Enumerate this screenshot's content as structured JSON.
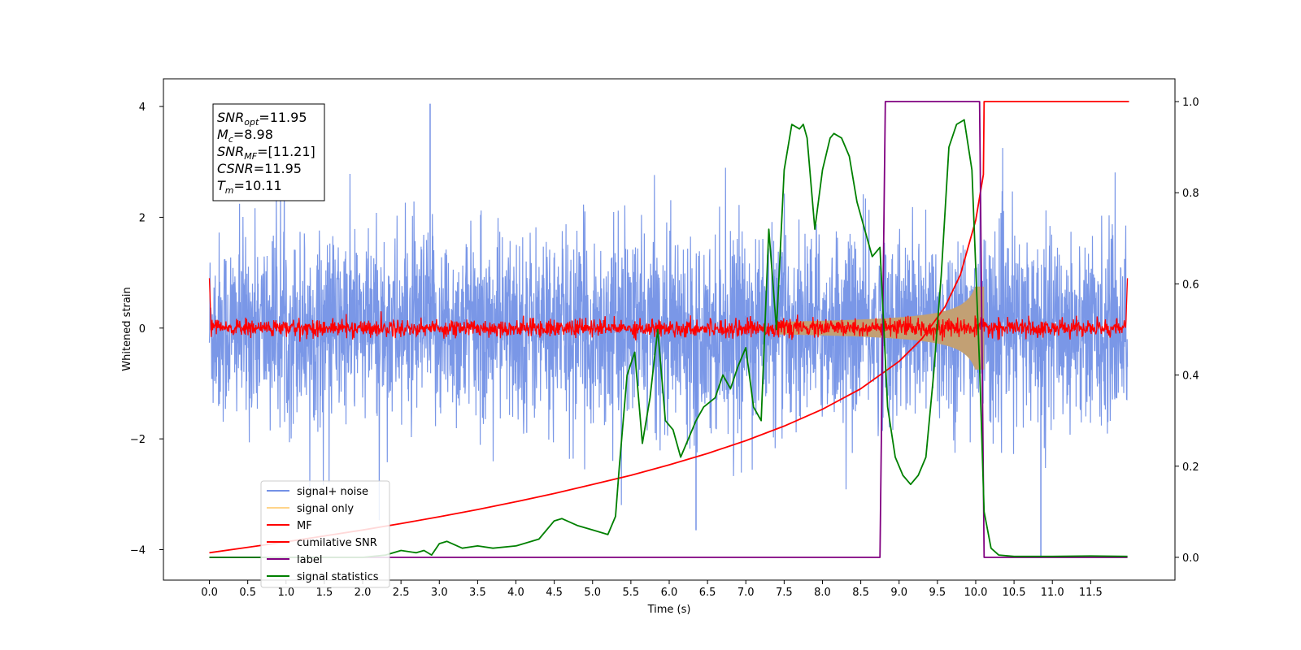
{
  "chart_data": {
    "type": "line",
    "xlabel": "Time (s)",
    "ylabel": "Whitened strain",
    "xlim": [
      -0.6,
      12.6
    ],
    "ylim": [
      -4.55,
      4.5
    ],
    "y2lim": [
      -0.05,
      1.05
    ],
    "x_ticks": [
      "0.0",
      "0.5",
      "1.0",
      "1.5",
      "2.0",
      "2.5",
      "3.0",
      "3.5",
      "4.0",
      "4.5",
      "5.0",
      "5.5",
      "6.0",
      "6.5",
      "7.0",
      "7.5",
      "8.0",
      "8.5",
      "9.0",
      "9.5",
      "10.0",
      "10.5",
      "11.0",
      "11.5"
    ],
    "y_ticks": [
      "4",
      "2",
      "0",
      "−2",
      "−4"
    ],
    "y2_ticks": [
      "1.0",
      "0.8",
      "0.6",
      "0.4",
      "0.2",
      "0.0"
    ],
    "grid": false,
    "legend_position": "lower-left",
    "colors": {
      "noise": "#7391e6",
      "signal": "#ffd48a",
      "signal_fill": "#c2a074",
      "mf": "#ff0000",
      "csnr": "#ff0000",
      "label": "#800080",
      "stat": "#008000"
    },
    "info_box": {
      "snr_opt_sym": "SNR",
      "snr_opt_sub": "opt",
      "snr_opt_val": "=11.95",
      "mc_sym": "M",
      "mc_sub": "c",
      "mc_val": "=8.98",
      "snr_mf_sym": "SNR",
      "snr_mf_sub": "MF",
      "snr_mf_val": "=[11.21]",
      "csnr_sym": "CSNR",
      "csnr_val": "=11.95",
      "tm_sym": "T",
      "tm_sub": "m",
      "tm_val": "=10.11"
    },
    "series": [
      {
        "name": "signal+ noise",
        "legend": "signal+ noise",
        "axis": "left",
        "x_range": [
          0,
          11.98
        ],
        "std": 0.85,
        "outliers": [
          {
            "x": 2.88,
            "y": 4.05
          },
          {
            "x": 10.85,
            "y": -4.15
          },
          {
            "x": 6.35,
            "y": -3.65
          }
        ]
      },
      {
        "name": "signal only",
        "legend": "signal only",
        "axis": "left",
        "x_range": [
          0,
          10.11
        ],
        "amplitude_growth": "chirp",
        "max_amplitude": 0.75
      },
      {
        "name": "MF",
        "legend": "MF",
        "axis": "left",
        "x_range": [
          0,
          11.98
        ],
        "std": 0.08
      },
      {
        "name": "cumilative SNR",
        "legend": "cumilative SNR",
        "axis": "right",
        "x": [
          0,
          0.5,
          1,
          1.5,
          2,
          2.5,
          3,
          3.5,
          4,
          4.5,
          5,
          5.5,
          6,
          6.5,
          7,
          7.5,
          8,
          8.5,
          9,
          9.3,
          9.6,
          9.8,
          10,
          10.1,
          10.11,
          12.0
        ],
        "y": [
          0.01,
          0.022,
          0.034,
          0.047,
          0.06,
          0.074,
          0.089,
          0.105,
          0.122,
          0.14,
          0.16,
          0.18,
          0.203,
          0.228,
          0.256,
          0.288,
          0.325,
          0.37,
          0.43,
          0.48,
          0.55,
          0.62,
          0.74,
          0.84,
          1.0,
          1.0
        ]
      },
      {
        "name": "label",
        "legend": "label",
        "axis": "right",
        "x": [
          0,
          8.75,
          8.82,
          10.05,
          10.11,
          11.98
        ],
        "y": [
          0,
          0,
          1,
          1,
          0,
          0
        ]
      },
      {
        "name": "signal statistics",
        "legend": "signal statistics",
        "axis": "right",
        "x": [
          0,
          1,
          2,
          2.3,
          2.5,
          2.7,
          2.8,
          2.9,
          3.0,
          3.1,
          3.3,
          3.5,
          3.7,
          4.0,
          4.3,
          4.5,
          4.6,
          4.8,
          5.0,
          5.2,
          5.3,
          5.35,
          5.45,
          5.55,
          5.65,
          5.75,
          5.85,
          5.95,
          6.05,
          6.15,
          6.25,
          6.35,
          6.45,
          6.6,
          6.7,
          6.8,
          6.9,
          7.0,
          7.1,
          7.2,
          7.3,
          7.4,
          7.5,
          7.6,
          7.7,
          7.75,
          7.8,
          7.9,
          8.0,
          8.1,
          8.15,
          8.25,
          8.35,
          8.45,
          8.55,
          8.65,
          8.75,
          8.85,
          8.95,
          9.05,
          9.15,
          9.25,
          9.35,
          9.45,
          9.55,
          9.65,
          9.75,
          9.85,
          9.95,
          10.05,
          10.11,
          10.2,
          10.3,
          10.5,
          11.0,
          11.5,
          11.98
        ],
        "y": [
          0.0,
          0.0,
          0.0,
          0.005,
          0.015,
          0.01,
          0.015,
          0.005,
          0.03,
          0.035,
          0.02,
          0.025,
          0.02,
          0.025,
          0.04,
          0.08,
          0.085,
          0.07,
          0.06,
          0.05,
          0.09,
          0.2,
          0.4,
          0.45,
          0.25,
          0.35,
          0.5,
          0.3,
          0.28,
          0.22,
          0.26,
          0.3,
          0.33,
          0.35,
          0.4,
          0.37,
          0.42,
          0.46,
          0.33,
          0.3,
          0.72,
          0.5,
          0.85,
          0.95,
          0.94,
          0.95,
          0.92,
          0.72,
          0.85,
          0.92,
          0.93,
          0.92,
          0.88,
          0.78,
          0.72,
          0.66,
          0.68,
          0.33,
          0.22,
          0.18,
          0.16,
          0.18,
          0.22,
          0.4,
          0.62,
          0.9,
          0.95,
          0.96,
          0.85,
          0.42,
          0.1,
          0.02,
          0.005,
          0.002,
          0.002,
          0.003,
          0.002
        ]
      }
    ]
  }
}
